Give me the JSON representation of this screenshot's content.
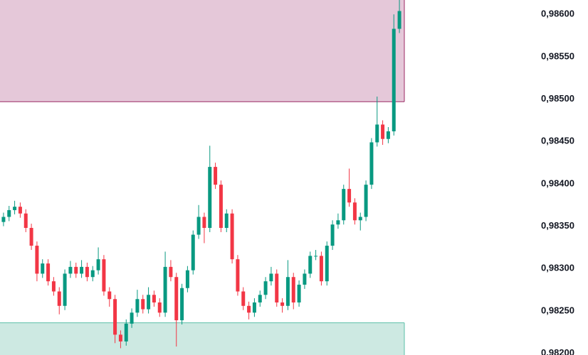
{
  "chart_data": {
    "type": "candlestick",
    "ylim": [
      0.98198,
      0.98617
    ],
    "yticks": [
      {
        "value": 0.982,
        "label": "0,98200"
      },
      {
        "value": 0.9825,
        "label": "0,98250"
      },
      {
        "value": 0.983,
        "label": "0,98300"
      },
      {
        "value": 0.9835,
        "label": "0,98350"
      },
      {
        "value": 0.984,
        "label": "0,98400"
      },
      {
        "value": 0.9845,
        "label": "0,98450"
      },
      {
        "value": 0.985,
        "label": "0,98500"
      },
      {
        "value": 0.9855,
        "label": "0,98550"
      },
      {
        "value": 0.986,
        "label": "0,98600"
      }
    ],
    "up_color": "#089981",
    "down_color": "#f23645",
    "zones": [
      {
        "low": 0.98497,
        "high": 0.9865,
        "color": "#e5c8d9",
        "border": "#9c2a64"
      },
      {
        "low": 0.9818,
        "high": 0.98236,
        "color": "#cde9e2",
        "border": "#5cbfa8"
      }
    ],
    "open": [
      0.98355,
      0.98361,
      0.98369,
      0.98373,
      0.98365,
      0.98348,
      0.98327,
      0.98294,
      0.98306,
      0.98285,
      0.98273,
      0.98256,
      0.98294,
      0.98302,
      0.98294,
      0.98302,
      0.9829,
      0.98298,
      0.98311,
      0.98273,
      0.98264,
      0.98222,
      0.98214,
      0.98235,
      0.98248,
      0.98264,
      0.98252,
      0.98269,
      0.9826,
      0.98248,
      0.98302,
      0.9829,
      0.98239,
      0.98277,
      0.98298,
      0.9834,
      0.98361,
      0.98348,
      0.9842,
      0.98399,
      0.98348,
      0.98365,
      0.98311,
      0.98273,
      0.98256,
      0.98248,
      0.9826,
      0.98269,
      0.98285,
      0.98294,
      0.9826,
      0.98256,
      0.9829,
      0.9826,
      0.98281,
      0.98294,
      0.98315,
      0.98315,
      0.98285,
      0.98327,
      0.98352,
      0.98357,
      0.98394,
      0.98378,
      0.98357,
      0.98361,
      0.98399,
      0.98449,
      0.9847,
      0.98453,
      0.98462,
      0.98583
    ],
    "high": [
      0.98366,
      0.98374,
      0.9838,
      0.98378,
      0.9837,
      0.98353,
      0.98332,
      0.98311,
      0.98311,
      0.9829,
      0.98278,
      0.98299,
      0.98309,
      0.98307,
      0.9831,
      0.98307,
      0.98303,
      0.98325,
      0.98316,
      0.98278,
      0.98269,
      0.98227,
      0.9824,
      0.98253,
      0.98275,
      0.98269,
      0.98278,
      0.98274,
      0.98265,
      0.9832,
      0.9831,
      0.98295,
      0.98282,
      0.98303,
      0.98345,
      0.98375,
      0.98366,
      0.98445,
      0.98425,
      0.98404,
      0.9837,
      0.9837,
      0.98316,
      0.98278,
      0.98261,
      0.98265,
      0.98274,
      0.9829,
      0.98302,
      0.98299,
      0.98265,
      0.9831,
      0.98295,
      0.98286,
      0.98299,
      0.9832,
      0.98322,
      0.9832,
      0.98332,
      0.98357,
      0.98365,
      0.98399,
      0.98418,
      0.98383,
      0.98366,
      0.98404,
      0.98454,
      0.98503,
      0.98475,
      0.98467,
      0.986,
      0.9862
    ],
    "low": [
      0.9835,
      0.98356,
      0.98364,
      0.9836,
      0.98343,
      0.98322,
      0.98285,
      0.98289,
      0.9828,
      0.98268,
      0.98246,
      0.98251,
      0.98289,
      0.98289,
      0.98289,
      0.98285,
      0.98285,
      0.98293,
      0.98268,
      0.98255,
      0.98212,
      0.98206,
      0.98209,
      0.9823,
      0.98243,
      0.98247,
      0.98247,
      0.98255,
      0.98243,
      0.98243,
      0.98285,
      0.98208,
      0.98234,
      0.98272,
      0.98293,
      0.98335,
      0.9833,
      0.98343,
      0.98394,
      0.98343,
      0.98343,
      0.98306,
      0.98268,
      0.98251,
      0.9824,
      0.98243,
      0.98255,
      0.98264,
      0.9828,
      0.98255,
      0.98248,
      0.98251,
      0.98252,
      0.98255,
      0.98276,
      0.98289,
      0.9831,
      0.9828,
      0.9828,
      0.98322,
      0.98347,
      0.98352,
      0.98373,
      0.98352,
      0.98345,
      0.98356,
      0.98394,
      0.98444,
      0.98446,
      0.98448,
      0.98457,
      0.98578
    ],
    "close": [
      0.98361,
      0.98369,
      0.98373,
      0.98365,
      0.98348,
      0.98327,
      0.98294,
      0.98306,
      0.98285,
      0.98273,
      0.98256,
      0.98294,
      0.98302,
      0.98294,
      0.98302,
      0.9829,
      0.98298,
      0.98311,
      0.98273,
      0.98264,
      0.98222,
      0.98214,
      0.98235,
      0.98248,
      0.98264,
      0.98252,
      0.98269,
      0.9826,
      0.98248,
      0.98302,
      0.9829,
      0.98239,
      0.98277,
      0.98298,
      0.9834,
      0.98361,
      0.98348,
      0.9842,
      0.98399,
      0.98348,
      0.98365,
      0.98311,
      0.98273,
      0.98256,
      0.98248,
      0.9826,
      0.98269,
      0.98285,
      0.98294,
      0.9826,
      0.98256,
      0.9829,
      0.9826,
      0.98281,
      0.98294,
      0.98315,
      0.98315,
      0.98285,
      0.98327,
      0.98352,
      0.98357,
      0.98394,
      0.98378,
      0.98357,
      0.98361,
      0.98399,
      0.98449,
      0.9847,
      0.98453,
      0.98462,
      0.98583,
      0.98604
    ]
  }
}
